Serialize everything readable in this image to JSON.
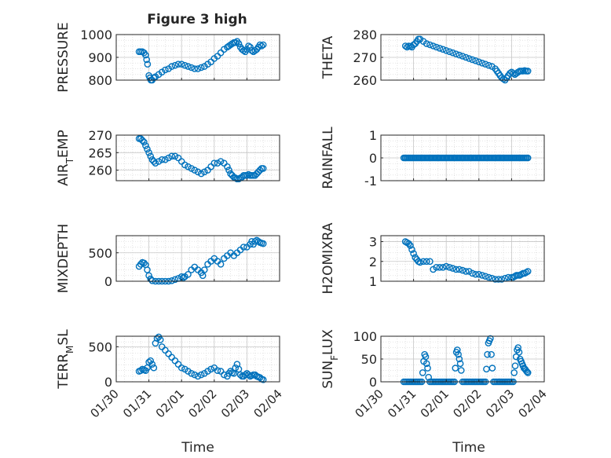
{
  "figure": {
    "title": "Figure 3 high",
    "background": "#ffffff",
    "marker_color": "#0072BD",
    "axes_color": "#262626",
    "grid_color": "#dcdcdc"
  },
  "chart_data": [
    {
      "type": "scatter",
      "marker": "circle-open",
      "ylabel": "PRESSURE",
      "ylim": [
        800,
        1000
      ],
      "yticks": [
        800,
        900,
        1000
      ],
      "yticklabels": [
        "800",
        "900",
        "1000"
      ],
      "xlim": [
        0,
        5
      ],
      "xticks": [
        0,
        1,
        2,
        3,
        4
      ],
      "xticklabels": [
        "01/30",
        "01/31",
        "02/01",
        "02/02",
        "02/03",
        "02/04"
      ],
      "show_xticklabels": false,
      "grid": "major+minor",
      "x": [
        0.7,
        0.75,
        0.8,
        0.85,
        0.9,
        0.93,
        0.96,
        1.0,
        1.03,
        1.06,
        1.1,
        1.15,
        1.2,
        1.3,
        1.4,
        1.5,
        1.6,
        1.7,
        1.8,
        1.9,
        2.0,
        2.1,
        2.2,
        2.3,
        2.4,
        2.5,
        2.6,
        2.7,
        2.8,
        2.9,
        3.0,
        3.1,
        3.2,
        3.3,
        3.4,
        3.45,
        3.5,
        3.55,
        3.6,
        3.65,
        3.7,
        3.75,
        3.8,
        3.85,
        3.9,
        3.95,
        4.0,
        4.05,
        4.1,
        4.15,
        4.2,
        4.25,
        4.3,
        4.35,
        4.4,
        4.45,
        4.5
      ],
      "y": [
        925,
        925,
        925,
        920,
        910,
        890,
        870,
        820,
        810,
        800,
        800,
        810,
        815,
        825,
        835,
        845,
        850,
        860,
        865,
        870,
        870,
        865,
        860,
        855,
        850,
        850,
        855,
        860,
        870,
        880,
        895,
        905,
        920,
        935,
        945,
        950,
        955,
        960,
        965,
        965,
        970,
        960,
        945,
        935,
        930,
        925,
        935,
        950,
        945,
        930,
        925,
        930,
        935,
        945,
        955,
        950,
        955
      ]
    },
    {
      "type": "scatter",
      "marker": "circle-open",
      "ylabel": "THETA",
      "ylim": [
        260,
        280
      ],
      "yticks": [
        260,
        270,
        280
      ],
      "yticklabels": [
        "260",
        "270",
        "280"
      ],
      "xlim": [
        0,
        5
      ],
      "xticks": [
        0,
        1,
        2,
        3,
        4
      ],
      "xticklabels": [
        "01/30",
        "01/31",
        "02/01",
        "02/02",
        "02/03",
        "02/04"
      ],
      "show_xticklabels": false,
      "grid": "major+minor",
      "x": [
        0.75,
        0.8,
        0.85,
        0.9,
        0.95,
        1.0,
        1.05,
        1.1,
        1.15,
        1.2,
        1.3,
        1.4,
        1.5,
        1.6,
        1.7,
        1.8,
        1.9,
        2.0,
        2.1,
        2.2,
        2.3,
        2.4,
        2.5,
        2.6,
        2.7,
        2.8,
        2.9,
        3.0,
        3.1,
        3.2,
        3.3,
        3.4,
        3.5,
        3.55,
        3.6,
        3.65,
        3.7,
        3.75,
        3.8,
        3.85,
        3.9,
        3.95,
        4.0,
        4.05,
        4.1,
        4.15,
        4.2,
        4.25,
        4.3,
        4.35,
        4.4,
        4.45,
        4.5
      ],
      "y": [
        275,
        274.5,
        275,
        274.8,
        274.5,
        275.5,
        276,
        277,
        278,
        278,
        277,
        276,
        275.5,
        275,
        274.5,
        274,
        273.5,
        273,
        272.5,
        272,
        271.5,
        271,
        270.5,
        270,
        269.5,
        269,
        268.5,
        268,
        267.5,
        267,
        266.5,
        266,
        265,
        264,
        263,
        262,
        261,
        260.5,
        260,
        261,
        262,
        263,
        263.5,
        263,
        262.5,
        263,
        263.5,
        264,
        264,
        264,
        264.2,
        264,
        264
      ]
    },
    {
      "type": "scatter",
      "marker": "circle-open",
      "ylabel": "AIR_T_EMP",
      "ylim": [
        257,
        270
      ],
      "yticks": [
        260,
        265,
        270
      ],
      "yticklabels": [
        "260",
        "265",
        "270"
      ],
      "xlim": [
        0,
        5
      ],
      "xticks": [
        0,
        1,
        2,
        3,
        4
      ],
      "xticklabels": [
        "01/30",
        "01/31",
        "02/01",
        "02/02",
        "02/03",
        "02/04"
      ],
      "show_xticklabels": false,
      "grid": "major+minor",
      "x": [
        0.7,
        0.75,
        0.8,
        0.85,
        0.9,
        0.95,
        1.0,
        1.05,
        1.1,
        1.15,
        1.2,
        1.3,
        1.4,
        1.5,
        1.6,
        1.7,
        1.8,
        1.9,
        2.0,
        2.1,
        2.2,
        2.3,
        2.4,
        2.5,
        2.6,
        2.7,
        2.8,
        2.9,
        3.0,
        3.1,
        3.2,
        3.3,
        3.4,
        3.45,
        3.5,
        3.55,
        3.6,
        3.65,
        3.7,
        3.75,
        3.8,
        3.85,
        3.9,
        3.95,
        4.0,
        4.05,
        4.1,
        4.15,
        4.2,
        4.25,
        4.3,
        4.35,
        4.4,
        4.45,
        4.5
      ],
      "y": [
        269,
        269,
        268.5,
        268,
        267,
        266,
        265,
        264,
        263,
        262.5,
        262,
        262.5,
        263,
        263,
        263.5,
        264,
        264,
        263.5,
        262.5,
        261.5,
        261,
        260.5,
        260,
        259.5,
        259,
        259.5,
        260,
        261,
        262,
        262,
        262.5,
        262,
        261,
        260,
        259,
        258.5,
        258,
        257.8,
        257.5,
        257.5,
        257.8,
        258,
        258.5,
        258.5,
        258.5,
        258.8,
        258.5,
        258.5,
        258.5,
        258.5,
        259,
        259.5,
        260,
        260.5,
        260.5
      ]
    },
    {
      "type": "scatter",
      "marker": "circle-open",
      "ylabel": "RAINFALL",
      "ylim": [
        -1,
        1
      ],
      "yticks": [
        -1,
        0,
        1
      ],
      "yticklabels": [
        "-1",
        "0",
        "1"
      ],
      "xlim": [
        0,
        5
      ],
      "xticks": [
        0,
        1,
        2,
        3,
        4
      ],
      "xticklabels": [
        "01/30",
        "01/31",
        "02/01",
        "02/02",
        "02/03",
        "02/04"
      ],
      "show_xticklabels": false,
      "grid": "major+minor",
      "x_range": [
        0.7,
        4.5
      ],
      "x_step": 0.04,
      "y_constant": 0
    },
    {
      "type": "scatter",
      "marker": "circle-open",
      "ylabel": "MIXDEPTH",
      "ylim": [
        0,
        800
      ],
      "yticks": [
        0,
        500
      ],
      "yticklabels": [
        "0",
        "500"
      ],
      "xlim": [
        0,
        5
      ],
      "xticks": [
        0,
        1,
        2,
        3,
        4
      ],
      "xticklabels": [
        "01/30",
        "01/31",
        "02/01",
        "02/02",
        "02/03",
        "02/04"
      ],
      "show_xticklabels": false,
      "grid": "major+minor",
      "x": [
        0.7,
        0.75,
        0.8,
        0.85,
        0.9,
        0.95,
        1.0,
        1.05,
        1.1,
        1.2,
        1.3,
        1.4,
        1.5,
        1.6,
        1.7,
        1.8,
        1.9,
        2.0,
        2.05,
        2.1,
        2.2,
        2.3,
        2.4,
        2.5,
        2.6,
        2.65,
        2.7,
        2.8,
        2.9,
        3.0,
        3.1,
        3.2,
        3.3,
        3.4,
        3.5,
        3.6,
        3.7,
        3.8,
        3.9,
        4.0,
        4.1,
        4.15,
        4.2,
        4.25,
        4.3,
        4.35,
        4.4,
        4.45,
        4.5
      ],
      "y": [
        260,
        300,
        330,
        320,
        290,
        200,
        100,
        40,
        10,
        0,
        0,
        0,
        0,
        0,
        10,
        30,
        50,
        80,
        60,
        80,
        120,
        200,
        250,
        200,
        150,
        100,
        200,
        300,
        350,
        400,
        350,
        300,
        400,
        450,
        500,
        450,
        500,
        550,
        600,
        600,
        650,
        700,
        650,
        700,
        720,
        700,
        680,
        670,
        660
      ]
    },
    {
      "type": "scatter",
      "marker": "circle-open",
      "ylabel": "H2OMIXRA",
      "ylim": [
        1,
        3.3
      ],
      "yticks": [
        1,
        2,
        3
      ],
      "yticklabels": [
        "1",
        "2",
        "3"
      ],
      "xlim": [
        0,
        5
      ],
      "xticks": [
        0,
        1,
        2,
        3,
        4
      ],
      "xticklabels": [
        "01/30",
        "01/31",
        "02/01",
        "02/02",
        "02/03",
        "02/04"
      ],
      "show_xticklabels": false,
      "grid": "major+minor",
      "x": [
        0.75,
        0.8,
        0.85,
        0.9,
        0.95,
        1.0,
        1.05,
        1.1,
        1.15,
        1.2,
        1.3,
        1.4,
        1.5,
        1.6,
        1.7,
        1.8,
        1.9,
        2.0,
        2.1,
        2.2,
        2.3,
        2.4,
        2.5,
        2.6,
        2.7,
        2.8,
        2.9,
        3.0,
        3.1,
        3.2,
        3.3,
        3.4,
        3.5,
        3.6,
        3.7,
        3.8,
        3.9,
        4.0,
        4.05,
        4.1,
        4.15,
        4.2,
        4.25,
        4.3,
        4.35,
        4.4,
        4.45,
        4.5
      ],
      "y": [
        3.0,
        2.95,
        2.9,
        2.8,
        2.6,
        2.4,
        2.2,
        2.1,
        2.0,
        1.95,
        2.0,
        2.0,
        2.0,
        1.6,
        1.7,
        1.7,
        1.7,
        1.75,
        1.7,
        1.65,
        1.6,
        1.6,
        1.55,
        1.5,
        1.5,
        1.4,
        1.35,
        1.35,
        1.3,
        1.25,
        1.2,
        1.15,
        1.1,
        1.1,
        1.1,
        1.15,
        1.2,
        1.2,
        1.2,
        1.25,
        1.3,
        1.3,
        1.3,
        1.35,
        1.4,
        1.4,
        1.45,
        1.5
      ]
    },
    {
      "type": "scatter",
      "marker": "circle-open",
      "ylabel": "TERR_M_SL",
      "ylim": [
        0,
        650
      ],
      "yticks": [
        0,
        500
      ],
      "yticklabels": [
        "0",
        "500"
      ],
      "xlim": [
        0,
        5
      ],
      "xticks": [
        0,
        1,
        2,
        3,
        4
      ],
      "xticklabels": [
        "01/30",
        "01/31",
        "02/01",
        "02/02",
        "02/03",
        "02/04"
      ],
      "show_xticklabels": true,
      "grid": "major+minor",
      "xlabel": "Time",
      "x": [
        0.7,
        0.75,
        0.8,
        0.85,
        0.9,
        0.95,
        1.0,
        1.05,
        1.1,
        1.15,
        1.2,
        1.25,
        1.3,
        1.35,
        1.4,
        1.5,
        1.6,
        1.7,
        1.8,
        1.9,
        2.0,
        2.1,
        2.2,
        2.3,
        2.4,
        2.5,
        2.6,
        2.7,
        2.8,
        2.9,
        3.0,
        3.1,
        3.2,
        3.3,
        3.4,
        3.45,
        3.5,
        3.55,
        3.6,
        3.65,
        3.7,
        3.75,
        3.8,
        3.85,
        3.9,
        3.95,
        4.0,
        4.05,
        4.1,
        4.15,
        4.2,
        4.25,
        4.3,
        4.35,
        4.4,
        4.45,
        4.5
      ],
      "y": [
        150,
        160,
        180,
        170,
        160,
        200,
        280,
        300,
        250,
        200,
        550,
        620,
        640,
        600,
        500,
        450,
        400,
        350,
        300,
        250,
        200,
        180,
        150,
        120,
        100,
        80,
        100,
        120,
        150,
        180,
        200,
        160,
        150,
        100,
        80,
        120,
        150,
        130,
        120,
        200,
        250,
        180,
        100,
        80,
        80,
        100,
        120,
        100,
        80,
        90,
        100,
        100,
        80,
        70,
        60,
        40,
        30
      ]
    },
    {
      "type": "scatter",
      "marker": "circle-open",
      "ylabel": "SUN_F_LUX",
      "ylim": [
        0,
        100
      ],
      "yticks": [
        0,
        50,
        100
      ],
      "yticklabels": [
        "0",
        "50",
        "100"
      ],
      "xlim": [
        0,
        5
      ],
      "xticks": [
        0,
        1,
        2,
        3,
        4
      ],
      "xticklabels": [
        "01/30",
        "01/31",
        "02/01",
        "02/02",
        "02/03",
        "02/04"
      ],
      "show_xticklabels": true,
      "grid": "major+minor",
      "xlabel": "Time",
      "x": [
        0.7,
        0.75,
        0.8,
        0.85,
        0.9,
        0.95,
        1.0,
        1.05,
        1.1,
        1.15,
        1.2,
        1.25,
        1.28,
        1.31,
        1.34,
        1.37,
        1.4,
        1.43,
        1.46,
        1.5,
        1.55,
        1.6,
        1.65,
        1.7,
        1.75,
        1.8,
        1.85,
        1.9,
        1.95,
        2.0,
        2.05,
        2.1,
        2.15,
        2.2,
        2.25,
        2.28,
        2.31,
        2.34,
        2.37,
        2.4,
        2.43,
        2.46,
        2.5,
        2.55,
        2.6,
        2.65,
        2.7,
        2.75,
        2.8,
        2.85,
        2.9,
        2.95,
        3.0,
        3.05,
        3.1,
        3.15,
        3.2,
        3.23,
        3.26,
        3.29,
        3.32,
        3.35,
        3.38,
        3.41,
        3.45,
        3.5,
        3.55,
        3.6,
        3.65,
        3.7,
        3.75,
        3.8,
        3.85,
        3.9,
        3.95,
        4.0,
        4.05,
        4.08,
        4.11,
        4.14,
        4.17,
        4.2,
        4.23,
        4.26,
        4.29,
        4.32,
        4.35,
        4.38,
        4.41,
        4.44,
        4.47,
        4.5
      ],
      "y": [
        0,
        0,
        0,
        0,
        0,
        0,
        0,
        0,
        0,
        0,
        0,
        0,
        20,
        45,
        60,
        55,
        40,
        30,
        10,
        0,
        0,
        0,
        0,
        0,
        0,
        0,
        0,
        0,
        0,
        0,
        0,
        0,
        0,
        0,
        0,
        30,
        65,
        70,
        60,
        50,
        40,
        25,
        0,
        0,
        0,
        0,
        0,
        0,
        0,
        0,
        0,
        0,
        0,
        0,
        0,
        0,
        0,
        28,
        60,
        85,
        90,
        95,
        60,
        30,
        0,
        0,
        0,
        0,
        0,
        0,
        0,
        0,
        0,
        0,
        0,
        0,
        0,
        20,
        35,
        55,
        70,
        75,
        65,
        50,
        45,
        40,
        35,
        30,
        28,
        25,
        22,
        20
      ]
    }
  ]
}
